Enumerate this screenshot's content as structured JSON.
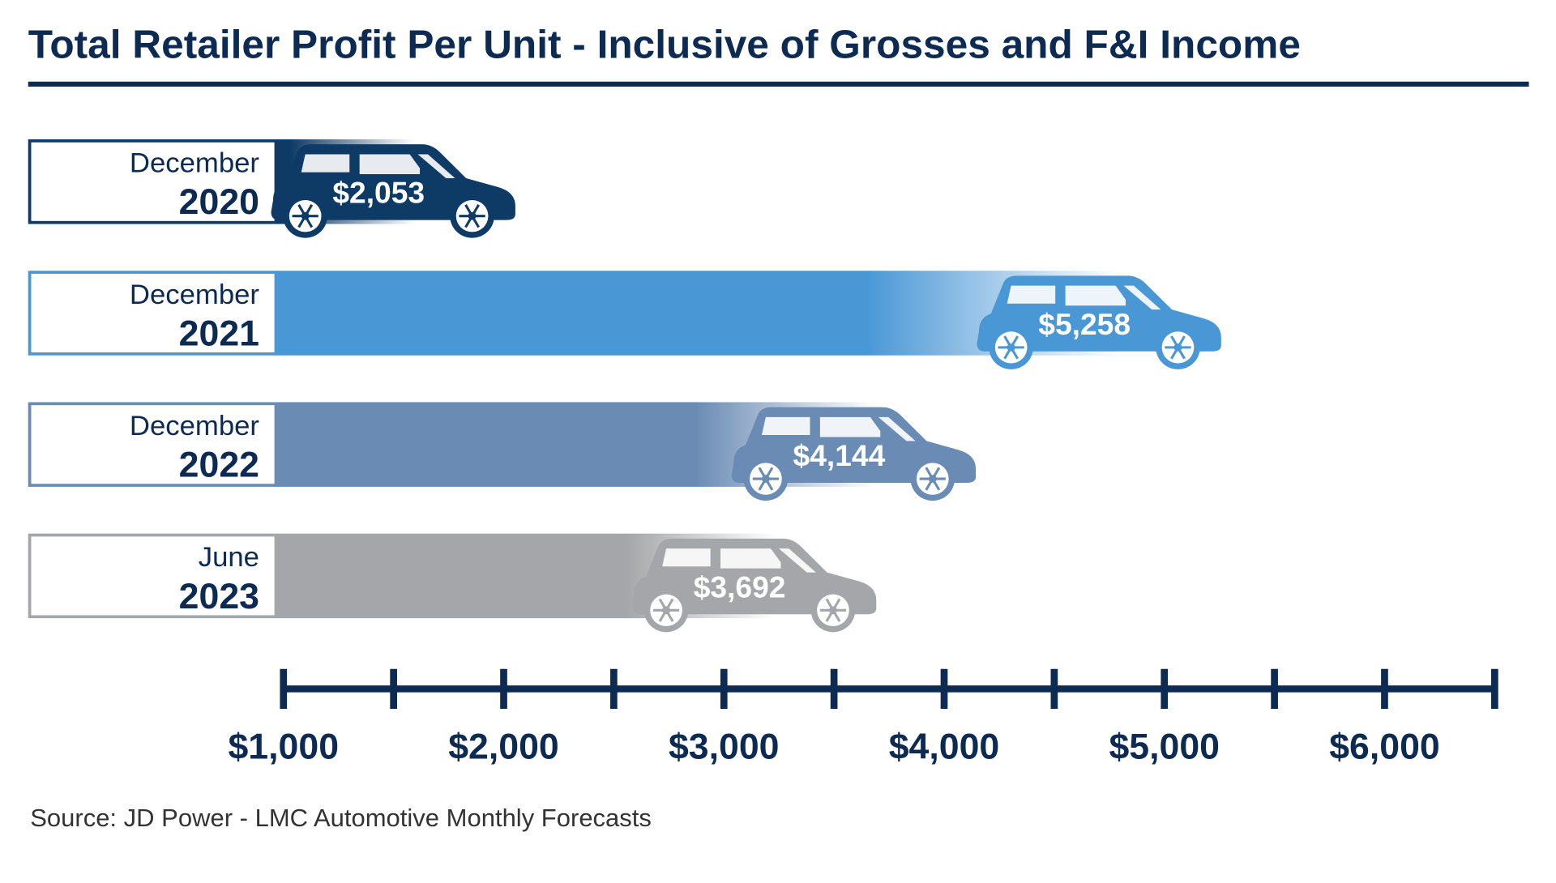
{
  "chart_data": {
    "type": "bar",
    "title": "Total Retailer Profit Per Unit - Inclusive of Grosses and F&I Income",
    "categories": [
      {
        "month": "December",
        "year": "2020"
      },
      {
        "month": "December",
        "year": "2021"
      },
      {
        "month": "December",
        "year": "2022"
      },
      {
        "month": "June",
        "year": "2023"
      }
    ],
    "values": [
      2053,
      5258,
      4144,
      3692
    ],
    "value_labels": [
      "$2,053",
      "$5,258",
      "$4,144",
      "$3,692"
    ],
    "colors": [
      "#0e3a66",
      "#4a97d6",
      "#6a8cb4",
      "#a5a6a9"
    ],
    "xlim": [
      1000,
      6500
    ],
    "xticks": [
      {
        "value": 1000,
        "label": "$1,000"
      },
      {
        "value": 2000,
        "label": "$2,000"
      },
      {
        "value": 3000,
        "label": "$3,000"
      },
      {
        "value": 4000,
        "label": "$4,000"
      },
      {
        "value": 5000,
        "label": "$5,000"
      },
      {
        "value": 6000,
        "label": "$6,000"
      }
    ],
    "xminor_ticks": [
      1500,
      2500,
      3500,
      4500,
      5500,
      6500
    ],
    "source": "Source:  JD Power - LMC Automotive Monthly Forecasts"
  }
}
